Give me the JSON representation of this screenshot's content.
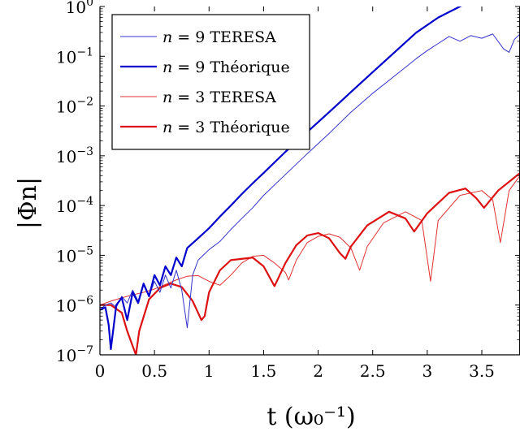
{
  "chart_data": {
    "type": "line",
    "xlabel": "t (ω₀⁻¹)",
    "ylabel": "|Φn|",
    "xlim": [
      0,
      3.85
    ],
    "ylim_log10": [
      -7,
      0
    ],
    "y_scale": "log",
    "grid": false,
    "legend_position": "top-left",
    "x_ticks": [
      {
        "value": 0,
        "label": "0"
      },
      {
        "value": 0.5,
        "label": "0.5"
      },
      {
        "value": 1,
        "label": "1"
      },
      {
        "value": 1.5,
        "label": "1.5"
      },
      {
        "value": 2,
        "label": "2"
      },
      {
        "value": 2.5,
        "label": "2.5"
      },
      {
        "value": 3,
        "label": "3"
      },
      {
        "value": 3.5,
        "label": "3.5"
      }
    ],
    "y_ticks": [
      {
        "exp": 0,
        "base": "10",
        "sup": "0"
      },
      {
        "exp": -1,
        "base": "10",
        "sup": "−1"
      },
      {
        "exp": -2,
        "base": "10",
        "sup": "−2"
      },
      {
        "exp": -3,
        "base": "10",
        "sup": "−3"
      },
      {
        "exp": -4,
        "base": "10",
        "sup": "−4"
      },
      {
        "exp": -5,
        "base": "10",
        "sup": "−5"
      },
      {
        "exp": -6,
        "base": "10",
        "sup": "−6"
      },
      {
        "exp": -7,
        "base": "10",
        "sup": "−7"
      }
    ],
    "series": [
      {
        "name": "n = 9 TERESA",
        "n_label": "n",
        "rest_label": " = 9 TERESA",
        "color": "#3333cc",
        "width": 1,
        "x": [
          0,
          0.05,
          0.1,
          0.15,
          0.2,
          0.25,
          0.3,
          0.35,
          0.4,
          0.45,
          0.5,
          0.55,
          0.6,
          0.65,
          0.7,
          0.75,
          0.8,
          0.85,
          0.9,
          1.0,
          1.1,
          1.2,
          1.3,
          1.4,
          1.5,
          1.7,
          1.9,
          2.1,
          2.3,
          2.5,
          2.7,
          2.9,
          3.0,
          3.1,
          3.2,
          3.3,
          3.4,
          3.5,
          3.6,
          3.7,
          3.75,
          3.8,
          3.85
        ],
        "y": [
          8e-07,
          1e-06,
          1.1e-06,
          9e-07,
          1.5e-06,
          1.1e-06,
          2e-06,
          1.2e-06,
          2.5e-06,
          1.5e-06,
          3e-06,
          1.8e-06,
          4e-06,
          2.2e-06,
          5e-06,
          2e-06,
          3.5e-07,
          4e-06,
          8e-06,
          1.3e-05,
          1.9e-05,
          3.3e-05,
          5.5e-05,
          9e-05,
          0.00016,
          0.00042,
          0.0011,
          0.0028,
          0.0075,
          0.018,
          0.04,
          0.09,
          0.13,
          0.18,
          0.25,
          0.2,
          0.26,
          0.23,
          0.28,
          0.14,
          0.12,
          0.22,
          0.28
        ]
      },
      {
        "name": "n = 9 Théorique",
        "n_label": "n",
        "rest_label": " = 9 Théorique",
        "color": "#0000cc",
        "width": 2.2,
        "x": [
          0,
          0.05,
          0.08,
          0.1,
          0.15,
          0.2,
          0.25,
          0.3,
          0.35,
          0.4,
          0.45,
          0.5,
          0.55,
          0.6,
          0.65,
          0.7,
          0.75,
          0.8,
          0.9,
          1.0,
          1.1,
          1.2,
          1.3,
          1.4,
          1.5,
          1.7,
          1.9,
          2.1,
          2.3,
          2.5,
          2.7,
          2.9,
          3.1,
          3.3,
          3.4
        ],
        "y": [
          8e-07,
          9e-07,
          4e-07,
          1.3e-07,
          1e-06,
          1.4e-06,
          5e-07,
          1.8e-06,
          1.1e-06,
          2.7e-06,
          1.5e-06,
          4e-06,
          2.5e-06,
          6e-06,
          4e-06,
          9e-06,
          6e-06,
          1.4e-05,
          2.2e-05,
          3.5e-05,
          6e-05,
          0.0001,
          0.00017,
          0.00028,
          0.00045,
          0.0012,
          0.003,
          0.0075,
          0.019,
          0.048,
          0.12,
          0.3,
          0.6,
          1.0,
          1.3
        ]
      },
      {
        "name": "n = 3 TERESA",
        "n_label": "n",
        "rest_label": " = 3 TERESA",
        "color": "#e03030",
        "width": 1,
        "x": [
          0,
          0.1,
          0.2,
          0.3,
          0.4,
          0.5,
          0.6,
          0.7,
          0.8,
          0.9,
          1.0,
          1.1,
          1.2,
          1.3,
          1.4,
          1.5,
          1.6,
          1.7,
          1.73,
          1.8,
          1.9,
          2.0,
          2.1,
          2.2,
          2.3,
          2.38,
          2.45,
          2.6,
          2.8,
          2.95,
          3.03,
          3.1,
          3.3,
          3.5,
          3.6,
          3.67,
          3.75,
          3.85
        ],
        "y": [
          1e-06,
          1.2e-06,
          1.4e-06,
          1.6e-06,
          1.8e-06,
          2.1e-06,
          2.6e-06,
          3.2e-06,
          3.8e-06,
          3.9e-06,
          3e-06,
          2.5e-06,
          4e-06,
          7e-06,
          9.5e-06,
          1e-05,
          7e-06,
          4.5e-06,
          3.2e-06,
          8e-06,
          1.8e-05,
          2.4e-05,
          2.7e-05,
          2.3e-05,
          1.4e-05,
          5e-06,
          1.5e-05,
          4.5e-05,
          7.5e-05,
          5e-05,
          3e-06,
          5e-05,
          0.00016,
          0.0002,
          0.00013,
          1.8e-05,
          0.0002,
          0.0004
        ]
      },
      {
        "name": "n = 3 Théorique",
        "n_label": "n",
        "rest_label": " = 3 Théorique",
        "color": "#dd1111",
        "width": 2.2,
        "x": [
          0,
          0.1,
          0.2,
          0.25,
          0.3,
          0.33,
          0.36,
          0.45,
          0.55,
          0.65,
          0.75,
          0.85,
          0.93,
          0.96,
          1.0,
          1.1,
          1.2,
          1.4,
          1.5,
          1.6,
          1.7,
          1.8,
          1.9,
          2.0,
          2.1,
          2.2,
          2.25,
          2.3,
          2.45,
          2.65,
          2.8,
          2.88,
          3.0,
          3.2,
          3.35,
          3.45,
          3.52,
          3.65,
          3.85
        ],
        "y": [
          1e-06,
          1e-06,
          7e-07,
          3e-07,
          1.5e-07,
          1e-07,
          3e-07,
          1.3e-06,
          2.2e-06,
          2.7e-06,
          2.3e-06,
          1.2e-06,
          5e-07,
          6e-07,
          1.8e-06,
          5e-06,
          8e-06,
          9e-06,
          6e-06,
          2.4e-06,
          7e-06,
          1.6e-05,
          2.5e-05,
          2.8e-05,
          2.2e-05,
          1.1e-05,
          8.5e-06,
          1.5e-05,
          4e-05,
          7.5e-05,
          5.5e-05,
          3e-05,
          7e-05,
          0.00018,
          0.00022,
          0.00014,
          9e-05,
          0.0002,
          0.00045
        ]
      }
    ]
  }
}
